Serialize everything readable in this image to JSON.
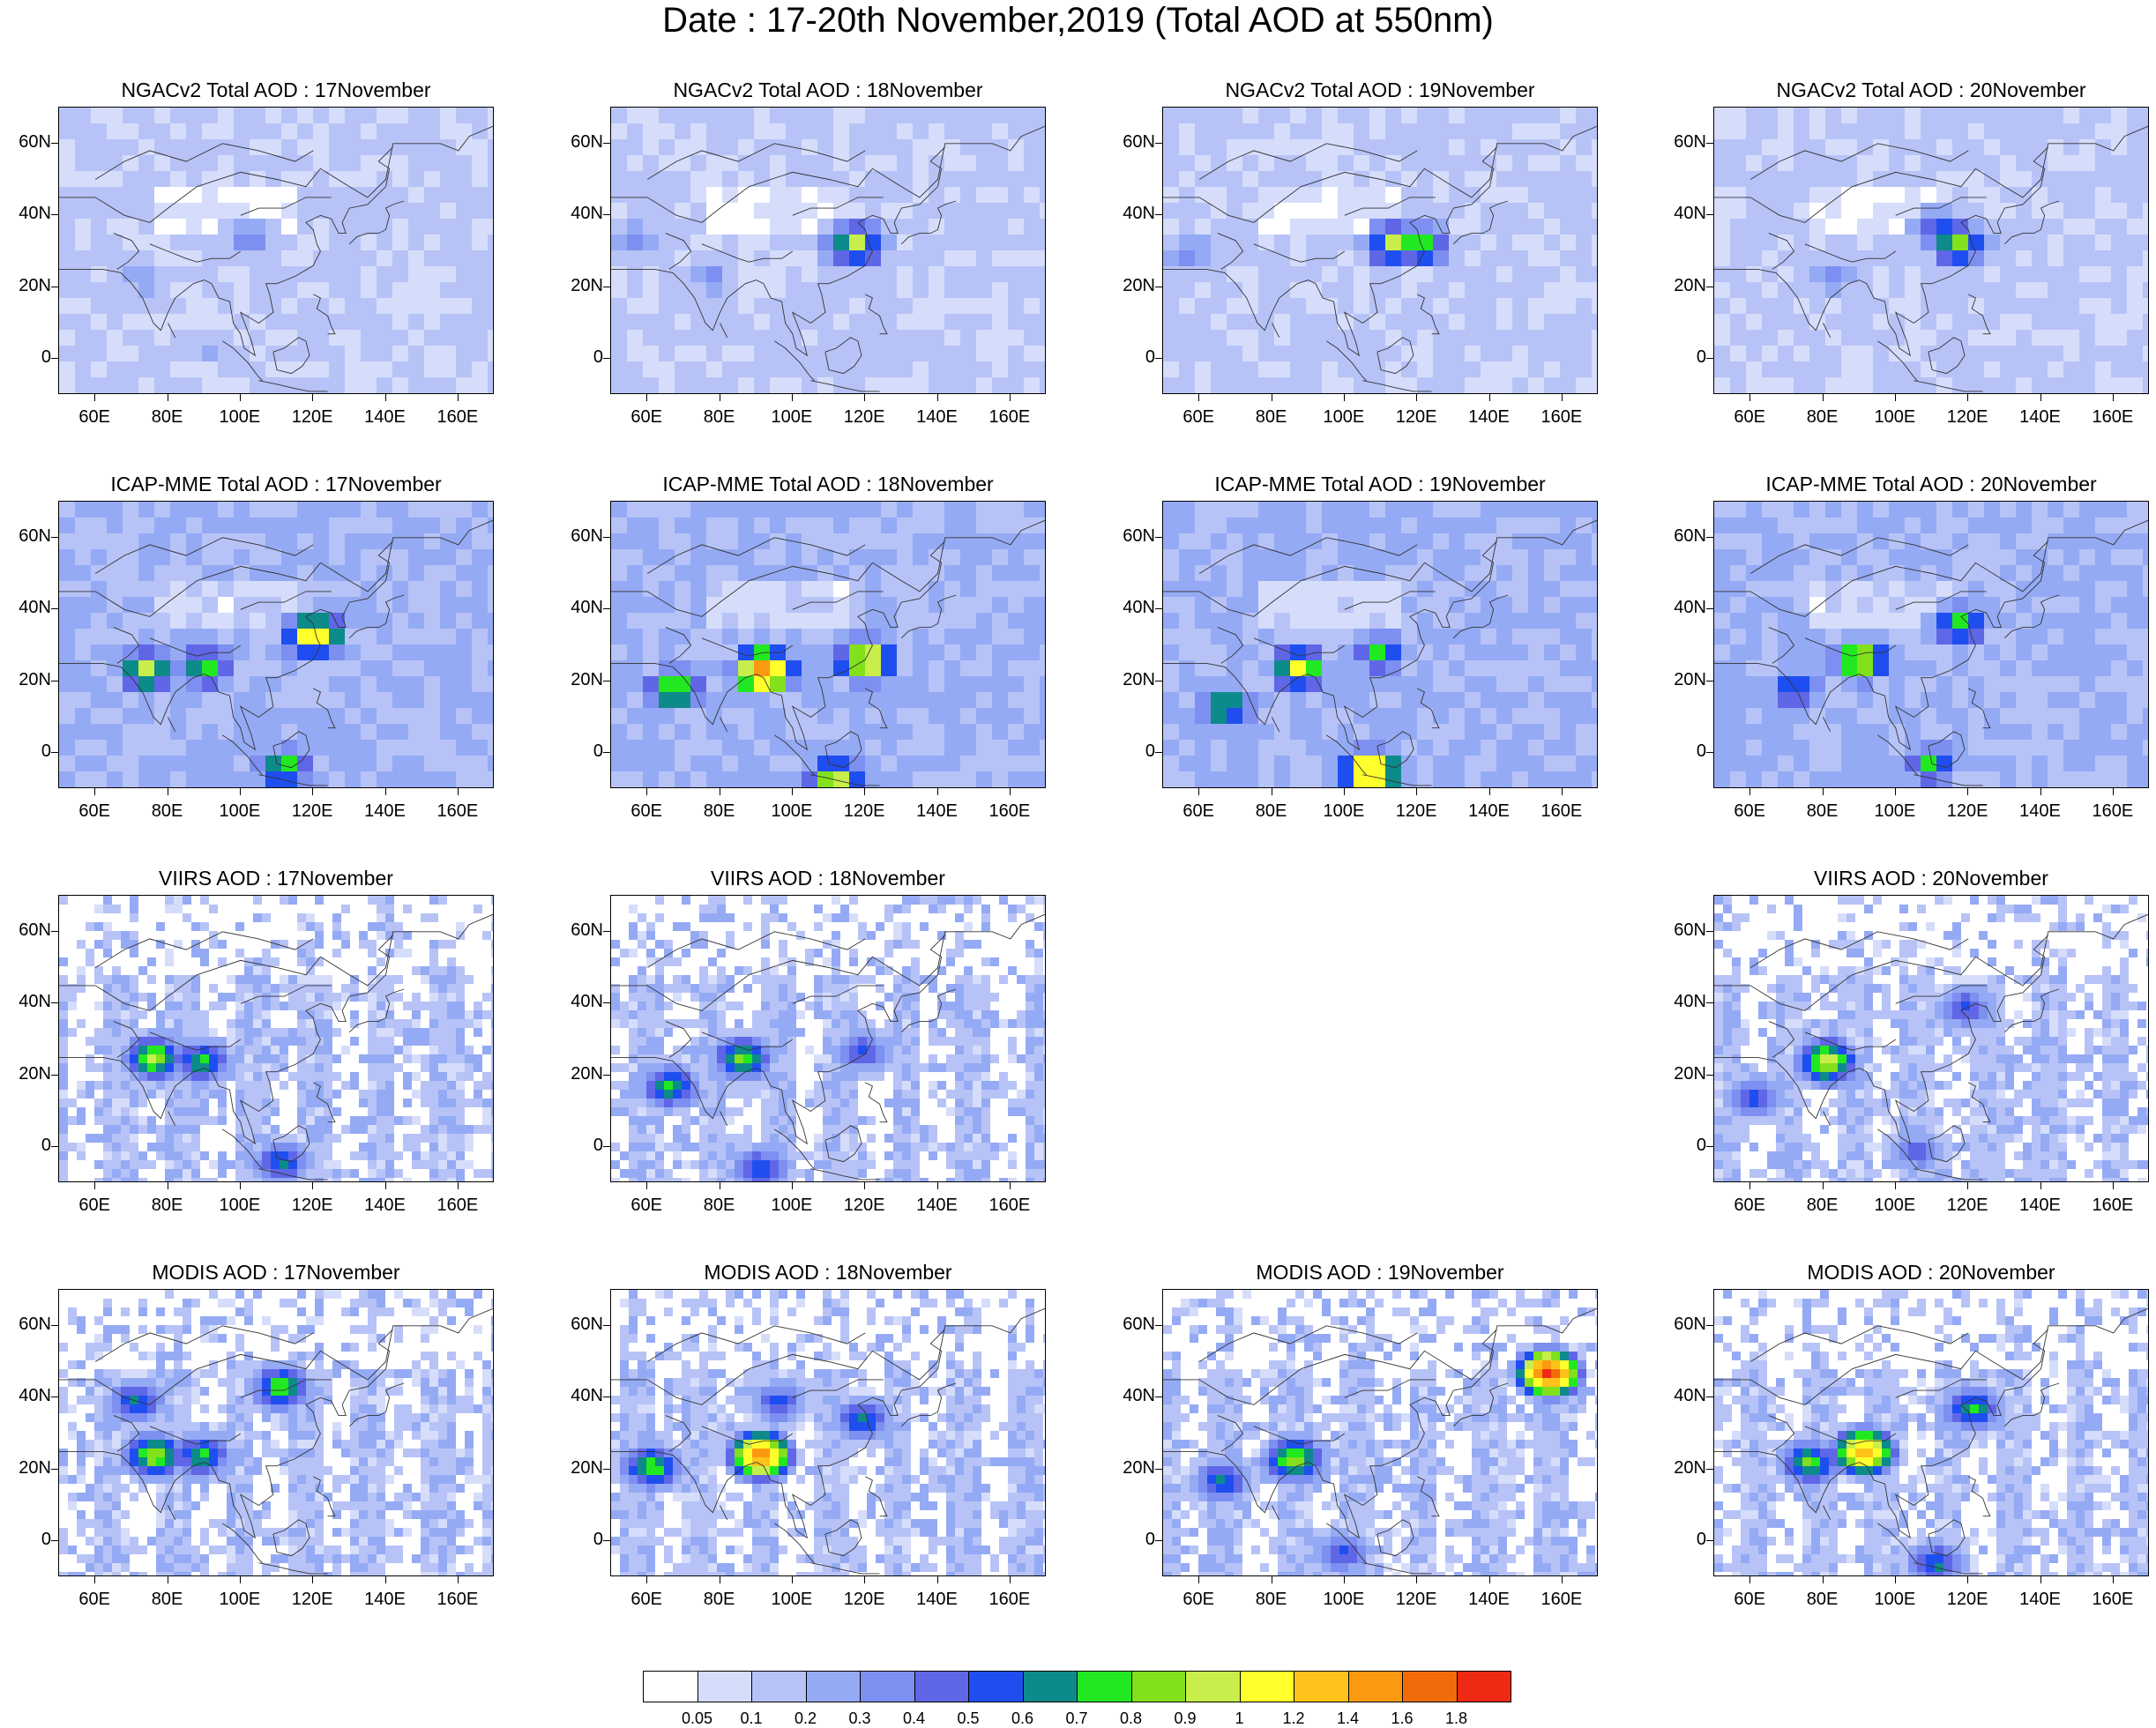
{
  "title": "Date : 17-20th November,2019 (Total AOD at 550nm)",
  "axis": {
    "lat_labels": [
      "60N",
      "40N",
      "20N",
      "0"
    ],
    "lon_labels": [
      "60E",
      "80E",
      "100E",
      "120E",
      "140E",
      "160E"
    ],
    "lat_range": [
      -10,
      70
    ],
    "lon_range": [
      50,
      170
    ]
  },
  "palette": [
    "#ffffff",
    "#d6ddfb",
    "#b7c3f7",
    "#95aaf4",
    "#7d8ff0",
    "#5f67e7",
    "#1f4ef0",
    "#0d8a8a",
    "#22e822",
    "#82e01c",
    "#c7ee4a",
    "#ffff2c",
    "#fec21a",
    "#fb9a10",
    "#f26b0b",
    "#ee2a14"
  ],
  "colorbar": {
    "labels": [
      "0.05",
      "0.1",
      "0.2",
      "0.3",
      "0.4",
      "0.5",
      "0.6",
      "0.7",
      "0.8",
      "0.9",
      "1",
      "1.2",
      "1.4",
      "1.6",
      "1.8"
    ]
  },
  "panels": [
    {
      "title": "NGACv2 Total AOD : 17November",
      "row": 0,
      "col": 0,
      "style": "model",
      "hotspots": [
        [
          100,
          35,
          0.3
        ],
        [
          70,
          25,
          0.25
        ],
        [
          90,
          5,
          0.15
        ]
      ]
    },
    {
      "title": "NGACv2 Total AOD : 18November",
      "row": 0,
      "col": 1,
      "style": "model",
      "hotspots": [
        [
          115,
          34,
          0.9
        ],
        [
          55,
          35,
          0.3
        ],
        [
          75,
          25,
          0.25
        ]
      ]
    },
    {
      "title": "NGACv2 Total AOD : 19November",
      "row": 0,
      "col": 2,
      "style": "model",
      "hotspots": [
        [
          112,
          34,
          0.9
        ],
        [
          118,
          34,
          0.8
        ],
        [
          55,
          32,
          0.3
        ]
      ]
    },
    {
      "title": "NGACv2 Total AOD : 20November",
      "row": 0,
      "col": 3,
      "style": "model",
      "hotspots": [
        [
          115,
          34,
          0.85
        ],
        [
          110,
          38,
          0.6
        ],
        [
          80,
          25,
          0.25
        ]
      ]
    },
    {
      "title": "ICAP-MME Total AOD : 17November",
      "row": 1,
      "col": 0,
      "style": "icap",
      "hotspots": [
        [
          118,
          35,
          1.2
        ],
        [
          72,
          25,
          0.9
        ],
        [
          88,
          26,
          0.8
        ],
        [
          110,
          -2,
          0.8
        ]
      ]
    },
    {
      "title": "ICAP-MME Total AOD : 18November",
      "row": 1,
      "col": 1,
      "style": "icap",
      "hotspots": [
        [
          90,
          25,
          1.6
        ],
        [
          65,
          20,
          0.9
        ],
        [
          118,
          28,
          1.2
        ],
        [
          110,
          -5,
          1.0
        ]
      ]
    },
    {
      "title": "ICAP-MME Total AOD : 19November",
      "row": 1,
      "col": 2,
      "style": "icap",
      "hotspots": [
        [
          85,
          26,
          1.0
        ],
        [
          65,
          15,
          0.8
        ],
        [
          105,
          -3,
          1.4
        ],
        [
          108,
          30,
          0.7
        ]
      ]
    },
    {
      "title": "ICAP-MME Total AOD : 20November",
      "row": 1,
      "col": 3,
      "style": "icap",
      "hotspots": [
        [
          88,
          28,
          1.0
        ],
        [
          70,
          20,
          0.6
        ],
        [
          115,
          38,
          0.8
        ],
        [
          108,
          -1,
          0.7
        ]
      ]
    },
    {
      "title": "VIIRS AOD : 17November",
      "row": 2,
      "col": 0,
      "style": "satellite",
      "hotspots": [
        [
          75,
          26,
          0.9
        ],
        [
          88,
          25,
          0.7
        ],
        [
          110,
          -3,
          0.6
        ]
      ]
    },
    {
      "title": "VIIRS AOD : 18November",
      "row": 2,
      "col": 1,
      "style": "satellite",
      "hotspots": [
        [
          85,
          26,
          0.8
        ],
        [
          65,
          18,
          0.7
        ],
        [
          90,
          -5,
          0.6
        ],
        [
          118,
          28,
          0.5
        ]
      ]
    },
    {
      "title": "VIIRS AOD : 20November",
      "row": 2,
      "col": 3,
      "style": "satellite",
      "hotspots": [
        [
          80,
          25,
          1.0
        ],
        [
          60,
          15,
          0.5
        ],
        [
          118,
          40,
          0.5
        ],
        [
          105,
          0,
          0.4
        ]
      ]
    },
    {
      "title": "MODIS AOD : 17November",
      "row": 3,
      "col": 0,
      "style": "satellite",
      "hotspots": [
        [
          75,
          25,
          0.9
        ],
        [
          110,
          44,
          0.8
        ],
        [
          88,
          25,
          0.7
        ],
        [
          70,
          40,
          0.6
        ]
      ]
    },
    {
      "title": "MODIS AOD : 18November",
      "row": 3,
      "col": 1,
      "style": "satellite",
      "hotspots": [
        [
          90,
          25,
          1.6
        ],
        [
          60,
          22,
          0.8
        ],
        [
          118,
          35,
          0.6
        ],
        [
          95,
          40,
          0.5
        ]
      ]
    },
    {
      "title": "MODIS AOD : 19November",
      "row": 3,
      "col": 2,
      "style": "satellite",
      "hotspots": [
        [
          85,
          24,
          0.9
        ],
        [
          65,
          18,
          0.6
        ],
        [
          155,
          48,
          1.8
        ],
        [
          98,
          -2,
          0.5
        ]
      ]
    },
    {
      "title": "MODIS AOD : 20November",
      "row": 3,
      "col": 3,
      "style": "satellite",
      "hotspots": [
        [
          90,
          26,
          1.4
        ],
        [
          75,
          23,
          0.8
        ],
        [
          120,
          38,
          0.7
        ],
        [
          110,
          -5,
          0.6
        ]
      ]
    }
  ]
}
